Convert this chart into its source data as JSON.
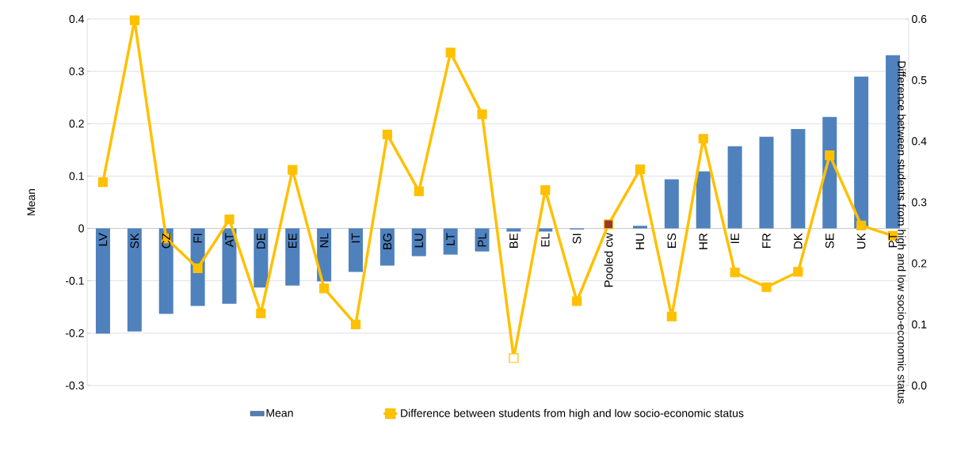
{
  "chart_data": {
    "type": "bar",
    "ylabel": "Mean",
    "y2label": "Difference between students from high and low socio-economic status",
    "categories": [
      "LV",
      "SK",
      "CZ",
      "FI",
      "AT",
      "DE",
      "EE",
      "NL",
      "IT",
      "BG",
      "LU",
      "LT",
      "PL",
      "BE",
      "EL",
      "SI",
      "Pooled cw",
      "HU",
      "ES",
      "HR",
      "IE",
      "FR",
      "DK",
      "SE",
      "UK",
      "PT"
    ],
    "series": [
      {
        "name": "Mean",
        "color": "#4f81bd",
        "values": [
          -0.201,
          -0.197,
          -0.163,
          -0.148,
          -0.144,
          -0.113,
          -0.109,
          -0.101,
          -0.083,
          -0.071,
          -0.053,
          -0.05,
          -0.044,
          -0.006,
          -0.006,
          -0.002,
          0,
          0.005,
          0.094,
          0.109,
          0.157,
          0.175,
          0.19,
          0.213,
          0.29,
          0.331
        ]
      },
      {
        "name": "Difference between students from high and low socio-economic status",
        "type": "line",
        "axis": "y2",
        "color": "#ffc000",
        "marker": "square",
        "colors": [
          "#ffc000",
          "#ffc000",
          "#ffc000",
          "#ffc000",
          "#ffc000",
          "#ffc000",
          "#ffc000",
          "#ffc000",
          "#ffc000",
          "#ffc000",
          "#ffc000",
          "#ffc000",
          "#ffc000",
          "#ffffff",
          "#ffc000",
          "#ffc000",
          "#953735",
          "#ffc000",
          "#ffc000",
          "#ffc000",
          "#ffc000",
          "#ffc000",
          "#ffc000",
          "#ffc000",
          "#ffc000",
          "#ffc000"
        ],
        "values": [
          0.333,
          0.598,
          0.241,
          0.192,
          0.272,
          0.118,
          0.353,
          0.159,
          0.1,
          0.411,
          0.318,
          0.545,
          0.444,
          0.045,
          0.32,
          0.138,
          0.264,
          0.354,
          0.113,
          0.404,
          0.185,
          0.161,
          0.186,
          0.377,
          0.262,
          0.245
        ]
      }
    ],
    "ylim": [
      -0.3,
      0.4
    ],
    "yticks": [
      -0.3,
      -0.2,
      -0.1,
      0,
      0.1,
      0.2,
      0.3,
      0.4
    ],
    "y2lim": [
      0,
      0.6
    ],
    "y2ticks": [
      {
        "value": 0,
        "label": "0.0"
      },
      0.1,
      0.2,
      0.3,
      0.4,
      0.5,
      0.6
    ],
    "grid": "y",
    "legend": "bottom"
  }
}
